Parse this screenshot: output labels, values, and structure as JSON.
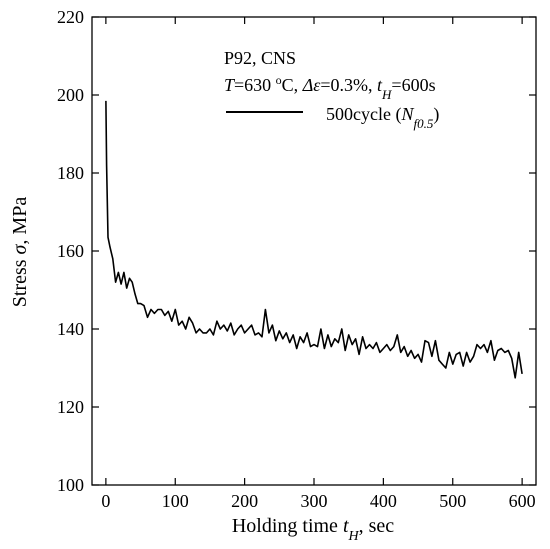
{
  "chart_data": {
    "type": "line",
    "xlabel": "Holding time t_H, sec",
    "ylabel": "Stress σ, MPa",
    "xlim": [
      -20,
      620
    ],
    "ylim": [
      100,
      220
    ],
    "xticks": [
      0,
      100,
      200,
      300,
      400,
      500,
      600
    ],
    "yticks": [
      100,
      120,
      140,
      160,
      180,
      200,
      220
    ],
    "xtick_labels": [
      "0",
      "100",
      "200",
      "300",
      "400",
      "500",
      "600"
    ],
    "ytick_labels": [
      "100",
      "120",
      "140",
      "160",
      "180",
      "200",
      "220"
    ],
    "grid": false,
    "legend_position": "top-right",
    "annotation": {
      "line1": "P92, CNS",
      "line2": "T=630 °C, Δε=0.3%, t_H=600s"
    },
    "series": [
      {
        "name": "500cycle (N_f0.5)",
        "color": "#000000",
        "x": [
          0,
          1,
          3,
          6,
          10,
          14,
          18,
          22,
          26,
          30,
          34,
          38,
          42,
          46,
          50,
          55,
          60,
          65,
          70,
          75,
          80,
          85,
          90,
          95,
          100,
          105,
          110,
          115,
          120,
          125,
          130,
          135,
          140,
          145,
          150,
          155,
          160,
          165,
          170,
          175,
          180,
          185,
          190,
          195,
          200,
          205,
          210,
          215,
          220,
          225,
          230,
          235,
          240,
          245,
          250,
          255,
          260,
          265,
          270,
          275,
          280,
          285,
          290,
          295,
          300,
          305,
          310,
          315,
          320,
          325,
          330,
          335,
          340,
          345,
          350,
          355,
          360,
          365,
          370,
          375,
          380,
          385,
          390,
          395,
          400,
          405,
          410,
          415,
          420,
          425,
          430,
          435,
          440,
          445,
          450,
          455,
          460,
          465,
          470,
          475,
          480,
          485,
          490,
          495,
          500,
          505,
          510,
          515,
          520,
          525,
          530,
          535,
          540,
          545,
          550,
          555,
          560,
          565,
          570,
          575,
          580,
          585,
          590,
          595,
          600
        ],
        "y": [
          198.5,
          182,
          163.5,
          161,
          158,
          152,
          154.5,
          151.5,
          154.5,
          150.5,
          153,
          152,
          149,
          146.5,
          146.5,
          146,
          143,
          145,
          144,
          145,
          145,
          143.5,
          144.5,
          142,
          145,
          141,
          142,
          140,
          143,
          141.5,
          139,
          140,
          139,
          139,
          140,
          138.5,
          142,
          140,
          141,
          139.5,
          141.5,
          138.5,
          140,
          141,
          139,
          140,
          141,
          138.5,
          139,
          138,
          145,
          139,
          141,
          137,
          139.5,
          137.5,
          139,
          136.5,
          138.5,
          135,
          138,
          136.5,
          139,
          135.5,
          136,
          135.5,
          140,
          135,
          138.5,
          135.5,
          137.5,
          136.5,
          140,
          134.5,
          138.5,
          136,
          137.5,
          133.5,
          138,
          135,
          136,
          135,
          136.5,
          134,
          135,
          136,
          134.5,
          135.5,
          138.5,
          134,
          135.5,
          133,
          134.5,
          132.5,
          133.5,
          131.5,
          137,
          136.5,
          133,
          137,
          132,
          131,
          130,
          134,
          131,
          133.5,
          134,
          130.5,
          134,
          131.5,
          133,
          136,
          135,
          136,
          134,
          137,
          132,
          134.5,
          135,
          134,
          134.5,
          132.5,
          127.5,
          134,
          128.5
        ]
      }
    ]
  }
}
